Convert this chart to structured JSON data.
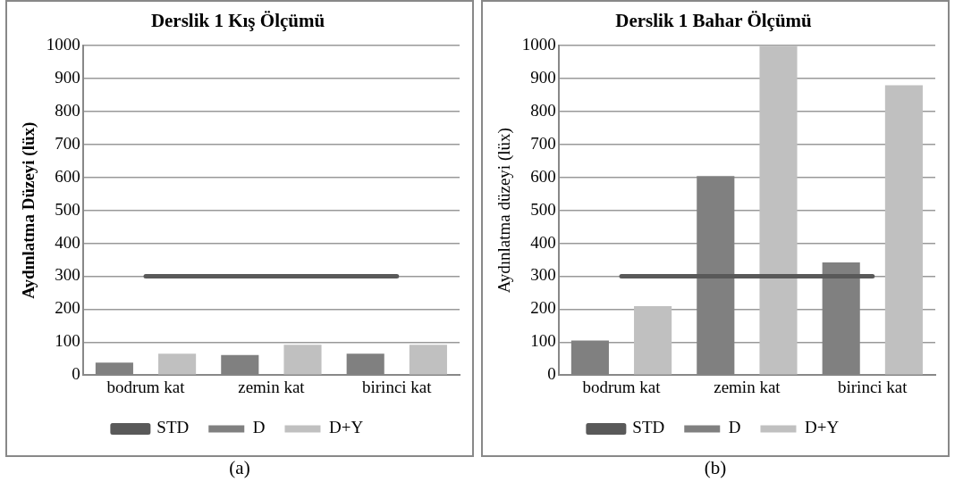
{
  "chart_data": [
    {
      "type": "bar",
      "title": "Derslik 1 Kış Ölçümü",
      "ylabel": "Aydınlatma Düzeyi (lüx)",
      "categories": [
        "bodrum kat",
        "zemin kat",
        "birinci kat"
      ],
      "series": [
        {
          "name": "D",
          "color": "#808080",
          "values": [
            38,
            61,
            65
          ]
        },
        {
          "name": "D+Y",
          "color": "#c0c0c0",
          "values": [
            65,
            92,
            92
          ]
        },
        {
          "name": "STD",
          "type": "line",
          "color": "#595959",
          "values": [
            300,
            300,
            300
          ]
        }
      ],
      "ylim": [
        0,
        1000
      ],
      "yticks": [
        0,
        100,
        200,
        300,
        400,
        500,
        600,
        700,
        800,
        900,
        1000
      ],
      "grid": "y",
      "legend": "bottom",
      "marker": "none",
      "line_style": "solid",
      "annotations": [
        "(a)"
      ]
    },
    {
      "type": "bar",
      "title": "Derslik 1 Bahar Ölçümü",
      "ylabel": "Aydınlatma düzeyi (lüx)",
      "categories": [
        "bodrum kat",
        "zemin kat",
        "birinci kat"
      ],
      "series": [
        {
          "name": "D",
          "color": "#808080",
          "values": [
            105,
            604,
            342
          ]
        },
        {
          "name": "D+Y",
          "color": "#c0c0c0",
          "values": [
            209,
            1000,
            880
          ]
        },
        {
          "name": "STD",
          "type": "line",
          "color": "#595959",
          "values": [
            300,
            300,
            300
          ]
        }
      ],
      "ylim": [
        0,
        1000
      ],
      "yticks": [
        0,
        100,
        200,
        300,
        400,
        500,
        600,
        700,
        800,
        900,
        1000
      ],
      "grid": "y",
      "legend": "bottom",
      "marker": "none",
      "line_style": "solid",
      "annotations": [
        "(b)"
      ]
    }
  ]
}
